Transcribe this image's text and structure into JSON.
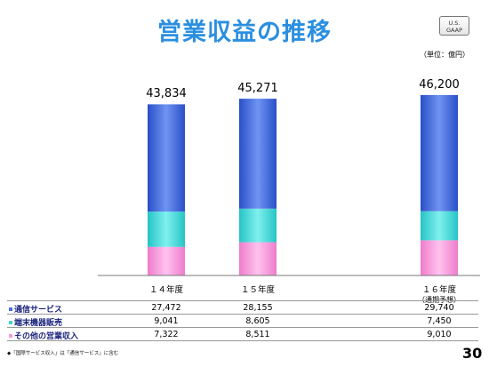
{
  "page": {
    "title": "営業収益の推移",
    "badge_line1": "U.S.",
    "badge_line2": "GAAP",
    "unit": "（単位：億円）",
    "footnote": "◆「国際サービス収入」は「通信サービス」に含む",
    "page_number": "30"
  },
  "chart_data": {
    "type": "bar",
    "stacked": true,
    "categories": [
      "１４年度",
      "１５年度",
      "１６年度"
    ],
    "category_notes": [
      "",
      "",
      "（通期予想）"
    ],
    "totals": [
      "43,834",
      "45,271",
      "46,200"
    ],
    "series": [
      {
        "name": "通信サービス",
        "values": [
          27472,
          28155,
          29740
        ],
        "labels": [
          "27,472",
          "28,155",
          "29,740"
        ],
        "color": "#3a63d9"
      },
      {
        "name": "端末機器販売",
        "values": [
          9041,
          8605,
          7450
        ],
        "labels": [
          "9,041",
          "8,605",
          "7,450"
        ],
        "color": "#3fd6d4"
      },
      {
        "name": "その他の営業収入",
        "values": [
          7322,
          8511,
          9010
        ],
        "labels": [
          "7,322",
          "8,511",
          "9,010"
        ],
        "color": "#f59ad9"
      }
    ],
    "legend_markers": [
      "#4a6fe0",
      "#3fd6d4",
      "#f59ad9"
    ],
    "ylim": [
      0,
      46200
    ]
  }
}
